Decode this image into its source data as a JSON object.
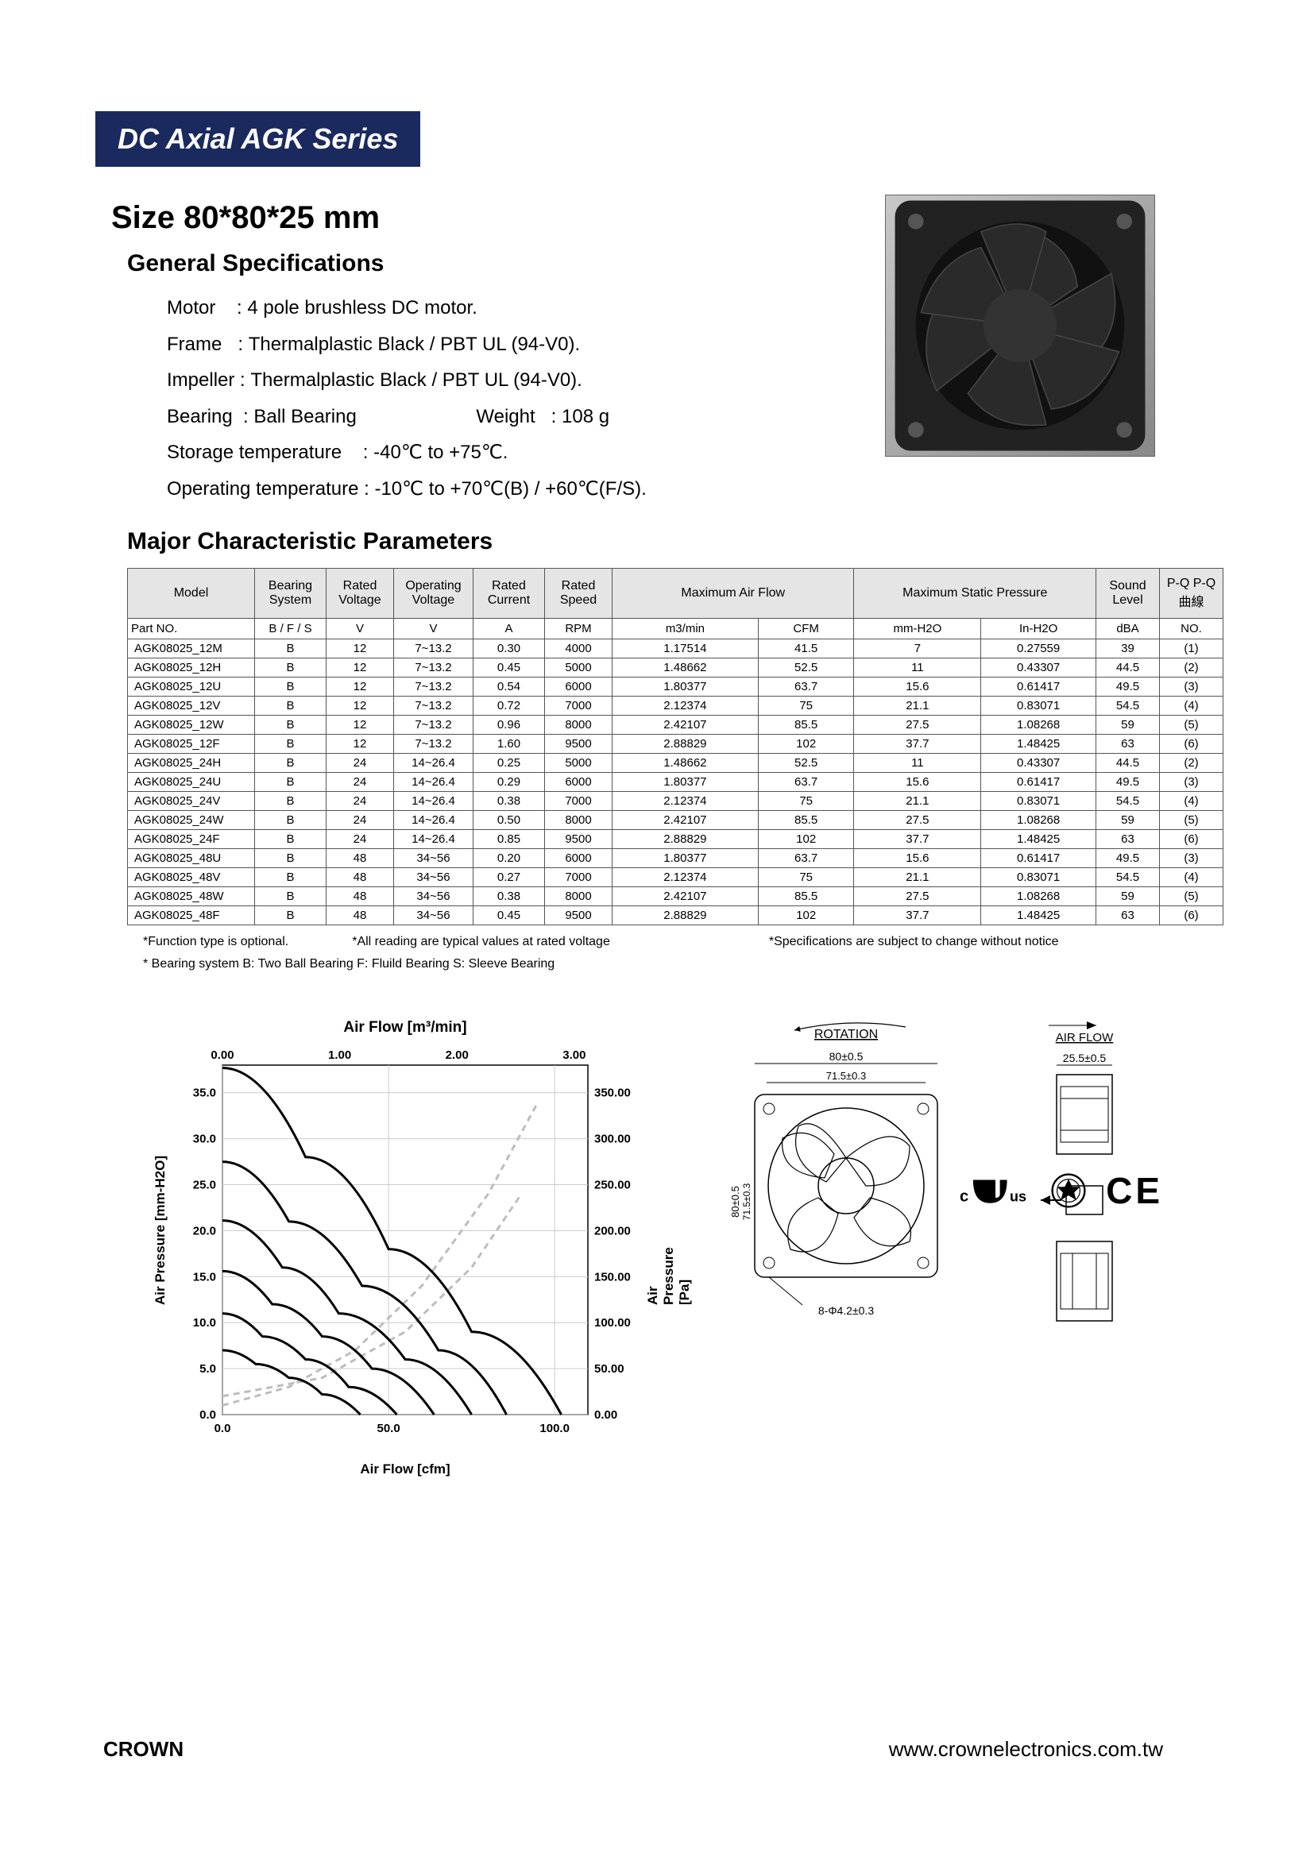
{
  "banner": "DC Axial AGK Series",
  "size_heading": "Size 80*80*25 mm",
  "section_general": "General Specifications",
  "section_params": "Major Characteristic Parameters",
  "specs": {
    "motor_label": "Motor    : ",
    "motor_value": "4 pole brushless  DC motor.",
    "frame_label": "Frame   : ",
    "frame_value": "Thermalplastic Black / PBT UL (94-V0).",
    "impeller_label": "Impeller : ",
    "impeller_value": "Thermalplastic Black / PBT UL (94-V0).",
    "bearing_label": "Bearing  : ",
    "bearing_value": "Ball Bearing",
    "weight_label": "Weight   : ",
    "weight_value": "108  g",
    "storage_label": "Storage temperature    : ",
    "storage_value": "-40℃ to +75℃.",
    "operating_label": "Operating temperature : ",
    "operating_value": "-10℃ to +70℃(B) / +60℃(F/S)."
  },
  "table": {
    "headers": [
      "Model",
      "Bearing System",
      "Rated Voltage",
      "Operating Voltage",
      "Rated Current",
      "Rated Speed",
      "Maximum Air Flow",
      "",
      "Maximum Static Pressure",
      "",
      "Sound Level",
      "P-Q P-Q曲線"
    ],
    "units": [
      "Part NO.",
      "B / F / S",
      "V",
      "V",
      "A",
      "RPM",
      "m3/min",
      "CFM",
      "mm-H2O",
      "In-H2O",
      "dBA",
      "NO."
    ],
    "rows": [
      [
        "AGK08025_12M",
        "B",
        "12",
        "7~13.2",
        "0.30",
        "4000",
        "1.17514",
        "41.5",
        "7",
        "0.27559",
        "39",
        "(1)"
      ],
      [
        "AGK08025_12H",
        "B",
        "12",
        "7~13.2",
        "0.45",
        "5000",
        "1.48662",
        "52.5",
        "11",
        "0.43307",
        "44.5",
        "(2)"
      ],
      [
        "AGK08025_12U",
        "B",
        "12",
        "7~13.2",
        "0.54",
        "6000",
        "1.80377",
        "63.7",
        "15.6",
        "0.61417",
        "49.5",
        "(3)"
      ],
      [
        "AGK08025_12V",
        "B",
        "12",
        "7~13.2",
        "0.72",
        "7000",
        "2.12374",
        "75",
        "21.1",
        "0.83071",
        "54.5",
        "(4)"
      ],
      [
        "AGK08025_12W",
        "B",
        "12",
        "7~13.2",
        "0.96",
        "8000",
        "2.42107",
        "85.5",
        "27.5",
        "1.08268",
        "59",
        "(5)"
      ],
      [
        "AGK08025_12F",
        "B",
        "12",
        "7~13.2",
        "1.60",
        "9500",
        "2.88829",
        "102",
        "37.7",
        "1.48425",
        "63",
        "(6)"
      ],
      [
        "AGK08025_24H",
        "B",
        "24",
        "14~26.4",
        "0.25",
        "5000",
        "1.48662",
        "52.5",
        "11",
        "0.43307",
        "44.5",
        "(2)"
      ],
      [
        "AGK08025_24U",
        "B",
        "24",
        "14~26.4",
        "0.29",
        "6000",
        "1.80377",
        "63.7",
        "15.6",
        "0.61417",
        "49.5",
        "(3)"
      ],
      [
        "AGK08025_24V",
        "B",
        "24",
        "14~26.4",
        "0.38",
        "7000",
        "2.12374",
        "75",
        "21.1",
        "0.83071",
        "54.5",
        "(4)"
      ],
      [
        "AGK08025_24W",
        "B",
        "24",
        "14~26.4",
        "0.50",
        "8000",
        "2.42107",
        "85.5",
        "27.5",
        "1.08268",
        "59",
        "(5)"
      ],
      [
        "AGK08025_24F",
        "B",
        "24",
        "14~26.4",
        "0.85",
        "9500",
        "2.88829",
        "102",
        "37.7",
        "1.48425",
        "63",
        "(6)"
      ],
      [
        "AGK08025_48U",
        "B",
        "48",
        "34~56",
        "0.20",
        "6000",
        "1.80377",
        "63.7",
        "15.6",
        "0.61417",
        "49.5",
        "(3)"
      ],
      [
        "AGK08025_48V",
        "B",
        "48",
        "34~56",
        "0.27",
        "7000",
        "2.12374",
        "75",
        "21.1",
        "0.83071",
        "54.5",
        "(4)"
      ],
      [
        "AGK08025_48W",
        "B",
        "48",
        "34~56",
        "0.38",
        "8000",
        "2.42107",
        "85.5",
        "27.5",
        "1.08268",
        "59",
        "(5)"
      ],
      [
        "AGK08025_48F",
        "B",
        "48",
        "34~56",
        "0.45",
        "9500",
        "2.88829",
        "102",
        "37.7",
        "1.48425",
        "63",
        "(6)"
      ]
    ]
  },
  "footnotes": {
    "f1": "*Function type is optional.",
    "f2": "*All reading are typical values at rated voltage",
    "f3": "*Specifications are subject to change without notice",
    "f4": "* Bearing system  B: Two Ball Bearing  F: Fluild Bearing  S: Sleeve Bearing"
  },
  "chart": {
    "title_top": "Air Flow [m³/min]",
    "x_label": "Air Flow [cfm]",
    "y_left": "Air Pressure [mm-H2O]",
    "y_right": "Air Pressure [Pa]",
    "x_ticks_top": [
      "0.00",
      "1.00",
      "2.00",
      "3.00"
    ],
    "x_ticks_bot": [
      "0.0",
      "50.0",
      "100.0"
    ],
    "y_ticks_left": [
      "0.0",
      "5.0",
      "10.0",
      "15.0",
      "20.0",
      "25.0",
      "30.0",
      "35.0"
    ],
    "y_ticks_right": [
      "0.00",
      "50.00",
      "100.00",
      "150.00",
      "200.00",
      "250.00",
      "300.00",
      "350.00"
    ],
    "xlim_cfm": [
      0,
      110
    ],
    "ylim_mm": [
      0,
      38
    ],
    "curves": [
      {
        "id": "(1)",
        "pts": [
          [
            0,
            7
          ],
          [
            10,
            5.5
          ],
          [
            20,
            4
          ],
          [
            30,
            2.2
          ],
          [
            41.5,
            0
          ]
        ]
      },
      {
        "id": "(2)",
        "pts": [
          [
            0,
            11
          ],
          [
            12,
            8.5
          ],
          [
            25,
            6
          ],
          [
            38,
            3
          ],
          [
            52.5,
            0
          ]
        ]
      },
      {
        "id": "(3)",
        "pts": [
          [
            0,
            15.6
          ],
          [
            15,
            12
          ],
          [
            30,
            8.5
          ],
          [
            45,
            5
          ],
          [
            63.7,
            0
          ]
        ]
      },
      {
        "id": "(4)",
        "pts": [
          [
            0,
            21.1
          ],
          [
            18,
            16
          ],
          [
            35,
            11
          ],
          [
            55,
            6
          ],
          [
            75,
            0
          ]
        ]
      },
      {
        "id": "(5)",
        "pts": [
          [
            0,
            27.5
          ],
          [
            20,
            21
          ],
          [
            42,
            14
          ],
          [
            65,
            7
          ],
          [
            85.5,
            0
          ]
        ]
      },
      {
        "id": "(6)",
        "pts": [
          [
            0,
            37.7
          ],
          [
            25,
            28
          ],
          [
            50,
            18
          ],
          [
            75,
            9
          ],
          [
            102,
            0
          ]
        ]
      }
    ],
    "dashed_curves": [
      {
        "pts": [
          [
            0,
            1
          ],
          [
            20,
            3
          ],
          [
            40,
            7
          ],
          [
            60,
            14
          ],
          [
            80,
            24
          ],
          [
            95,
            34
          ]
        ]
      },
      {
        "pts": [
          [
            0,
            2
          ],
          [
            30,
            4
          ],
          [
            55,
            9
          ],
          [
            75,
            16
          ],
          [
            90,
            24
          ]
        ]
      }
    ],
    "line_color": "#000000",
    "line_width": 3,
    "dashed_color": "#bdbdbd",
    "grid_color": "#cccccc",
    "background_color": "#ffffff"
  },
  "drawing": {
    "rotation_label": "ROTATION",
    "airflow_label": "AIR FLOW",
    "dim_80": "80±0.5",
    "dim_71_5": "71.5±0.3",
    "dim_25_5": "25.5±0.5",
    "dim_hole": "8-Φ4.2±0.3"
  },
  "footer": {
    "brand": "CROWN",
    "url": "www.crownelectronics.com.tw"
  },
  "colors": {
    "banner_bg": "#1a2a5e",
    "banner_fg": "#ffffff",
    "page_bg": "#ffffff",
    "table_header_bg": "#e5e5e5",
    "border": "#555555"
  }
}
